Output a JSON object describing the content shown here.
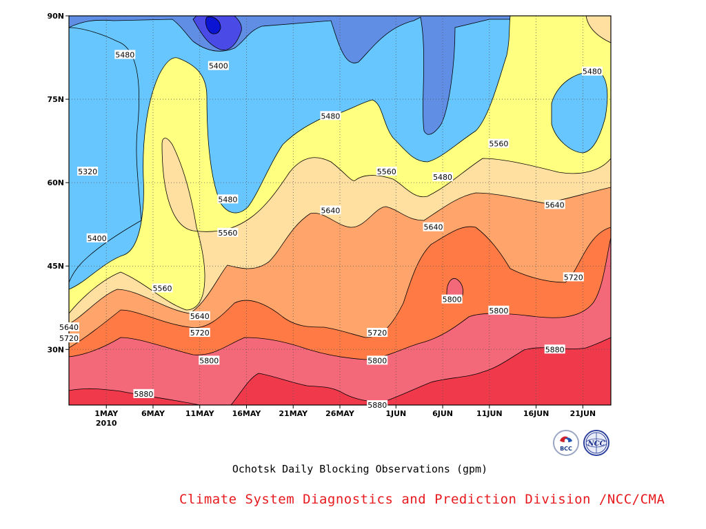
{
  "chart_data": {
    "type": "heatmap",
    "subtype": "filled-contour",
    "title": "Ochotsk Daily Blocking Observations (gpm)",
    "x_axis": {
      "ticks": [
        "1MAY",
        "6MAY",
        "11MAY",
        "16MAY",
        "21MAY",
        "26MAY",
        "1JUN",
        "6JUN",
        "11JUN",
        "16JUN",
        "21JUN"
      ],
      "year_label": "2010",
      "range": [
        "2010-04-27",
        "2010-06-24"
      ]
    },
    "y_axis": {
      "ticks": [
        "30N",
        "45N",
        "60N",
        "75N",
        "90N"
      ],
      "range": [
        20,
        90
      ],
      "unit": "degrees latitude"
    },
    "levels": [
      5320,
      5400,
      5480,
      5560,
      5640,
      5720,
      5800,
      5880
    ],
    "level_colors": {
      "<5320": "#0a14d2",
      "5320-5400": "#4a4ae6",
      "5400-5480": "#5f8ee4",
      "5480-5560": "#68c6ff",
      "5560-5640": "#ffff80",
      "5640-5720": "#ffe0a0",
      "5720-5800": "#ffa46a",
      "5800-5880": "#ff7a45",
      "5880-5960": "#f4697a",
      ">5960": "#f03a4c"
    },
    "contour_labels": [
      {
        "value": "5480",
        "date": "2010-05-03",
        "lat": 83
      },
      {
        "value": "5400",
        "date": "2010-05-13",
        "lat": 81
      },
      {
        "value": "5320",
        "date": "2010-04-29",
        "lat": 62
      },
      {
        "value": "5400",
        "date": "2010-04-30",
        "lat": 50
      },
      {
        "value": "5480",
        "date": "2010-05-14",
        "lat": 57
      },
      {
        "value": "5560",
        "date": "2010-05-14",
        "lat": 51
      },
      {
        "value": "5560",
        "date": "2010-05-07",
        "lat": 41
      },
      {
        "value": "5640",
        "date": "2010-05-11",
        "lat": 36
      },
      {
        "value": "5640",
        "date": "2010-04-27",
        "lat": 34
      },
      {
        "value": "5720",
        "date": "2010-04-27",
        "lat": 32
      },
      {
        "value": "5720",
        "date": "2010-05-11",
        "lat": 33
      },
      {
        "value": "5800",
        "date": "2010-05-12",
        "lat": 28
      },
      {
        "value": "5880",
        "date": "2010-05-05",
        "lat": 22
      },
      {
        "value": "5480",
        "date": "2010-05-25",
        "lat": 72
      },
      {
        "value": "5640",
        "date": "2010-05-25",
        "lat": 55
      },
      {
        "value": "5560",
        "date": "2010-05-31",
        "lat": 62
      },
      {
        "value": "5480",
        "date": "2010-06-06",
        "lat": 61
      },
      {
        "value": "5640",
        "date": "2010-06-05",
        "lat": 52
      },
      {
        "value": "5720",
        "date": "2010-05-30",
        "lat": 33
      },
      {
        "value": "5800",
        "date": "2010-05-30",
        "lat": 28
      },
      {
        "value": "5880",
        "date": "2010-05-30",
        "lat": 20
      },
      {
        "value": "5800",
        "date": "2010-06-07",
        "lat": 39
      },
      {
        "value": "5800",
        "date": "2010-06-12",
        "lat": 37
      },
      {
        "value": "5560",
        "date": "2010-06-12",
        "lat": 67
      },
      {
        "value": "5640",
        "date": "2010-06-18",
        "lat": 56
      },
      {
        "value": "5720",
        "date": "2010-06-20",
        "lat": 43
      },
      {
        "value": "5880",
        "date": "2010-06-18",
        "lat": 30
      },
      {
        "value": "5480",
        "date": "2010-06-22",
        "lat": 80
      }
    ],
    "grid": true
  },
  "credit": "Climate System Diagnostics and Prediction Division /NCC/CMA",
  "logos": [
    "BCC",
    "NCC"
  ]
}
